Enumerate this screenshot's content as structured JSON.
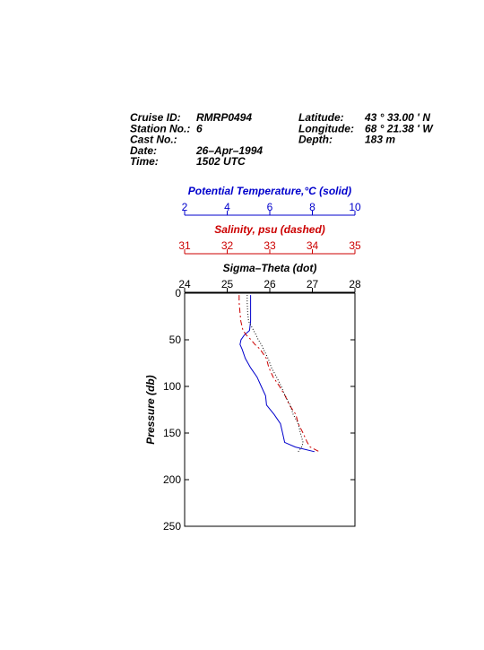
{
  "chart_data": {
    "type": "line",
    "header": {
      "left": [
        {
          "label": "Cruise ID:",
          "value": "RMRP0494"
        },
        {
          "label": "Station No.:",
          "value": "6"
        },
        {
          "label": "Cast No.:"
        },
        {
          "label": "Date:",
          "value": "26–Apr–1994"
        },
        {
          "label": "Time:",
          "value": "1502 UTC"
        }
      ],
      "right": [
        {
          "label": "Latitude:",
          "value": "43 ° 33.00 ' N"
        },
        {
          "label": "Longitude:",
          "value": "68 ° 21.38 ' W"
        },
        {
          "label": "Depth:",
          "value": "183 m"
        }
      ]
    },
    "y_label": "Pressure (db)",
    "ylim": [
      0,
      250
    ],
    "yticks": [
      0,
      50,
      100,
      150,
      200,
      250
    ],
    "x_axes": [
      {
        "label": "Potential Temperature,°C (solid)",
        "color": "#0000cc",
        "lim": [
          2,
          10
        ],
        "ticks": [
          2,
          4,
          6,
          8,
          10
        ]
      },
      {
        "label": "Salinity, psu  (dashed)",
        "color": "#cc0000",
        "lim": [
          31,
          35
        ],
        "ticks": [
          31,
          32,
          33,
          34,
          35
        ]
      },
      {
        "label": "Sigma–Theta (dot)",
        "color": "#000000",
        "lim": [
          24,
          28
        ],
        "ticks": [
          24,
          25,
          26,
          27,
          28
        ]
      }
    ],
    "pressure": [
      2,
      10,
      20,
      30,
      40,
      45,
      50,
      55,
      60,
      70,
      80,
      90,
      100,
      110,
      120,
      130,
      140,
      150,
      160,
      165,
      170
    ],
    "series": [
      {
        "axis": 0,
        "style": "solid",
        "color": "#0000cc",
        "values": [
          5.1,
          5.1,
          5.1,
          5.1,
          5.05,
          4.8,
          4.65,
          4.6,
          4.7,
          4.85,
          5.1,
          5.4,
          5.6,
          5.8,
          5.85,
          6.2,
          6.5,
          6.6,
          6.7,
          7.2,
          8.1
        ]
      },
      {
        "axis": 1,
        "style": "dashed",
        "color": "#cc0000",
        "values": [
          32.28,
          32.28,
          32.3,
          32.32,
          32.37,
          32.45,
          32.56,
          32.65,
          32.77,
          32.92,
          32.98,
          33.08,
          33.23,
          33.36,
          33.46,
          33.61,
          33.67,
          33.78,
          33.88,
          33.95,
          34.16
        ]
      },
      {
        "axis": 2,
        "style": "dotted",
        "color": "#000000",
        "values": [
          25.47,
          25.47,
          25.48,
          25.5,
          25.62,
          25.68,
          25.73,
          25.8,
          25.85,
          25.96,
          26.04,
          26.16,
          26.27,
          26.36,
          26.48,
          26.55,
          26.67,
          26.72,
          26.78,
          26.75,
          26.67
        ]
      }
    ]
  }
}
